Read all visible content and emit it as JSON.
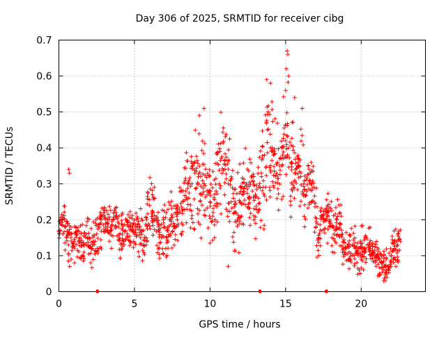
{
  "colors": {
    "series": "#ff0000",
    "grid": "#a0a0a0",
    "axis": "#000000"
  },
  "chart_data": {
    "type": "scatter",
    "title": "Day 306 of 2025, SRMTID for receiver cibg",
    "xlabel": "GPS time / hours",
    "ylabel": "SRMTID / TECUs",
    "xlim": [
      0,
      24.25
    ],
    "ylim": [
      0,
      0.7
    ],
    "grid": true,
    "xticks": [
      0,
      5,
      10,
      15,
      20
    ],
    "xtick_labels": [
      "0",
      "5",
      "10",
      "15",
      "20"
    ],
    "yticks": [
      0,
      0.1,
      0.2,
      0.3,
      0.4,
      0.5,
      0.6,
      0.7
    ],
    "ytick_labels": [
      "0",
      "0.1",
      "0.2",
      "0.3",
      "0.4",
      "0.5",
      "0.6",
      "0.7"
    ],
    "marker": "+",
    "gap_markers_x": [
      2.55,
      13.3,
      17.7
    ],
    "series": [
      {
        "name": "SRMTID",
        "x": [
          0.0,
          0.2,
          0.4,
          0.6,
          0.8,
          1.0,
          1.2,
          1.4,
          1.6,
          1.8,
          2.0,
          2.2,
          2.4,
          2.6,
          2.8,
          3.0,
          3.2,
          3.4,
          3.6,
          3.8,
          4.0,
          4.2,
          4.4,
          4.6,
          4.8,
          5.0,
          5.2,
          5.4,
          5.6,
          5.8,
          6.0,
          6.2,
          6.4,
          6.6,
          6.8,
          7.0,
          7.2,
          7.4,
          7.6,
          7.8,
          8.0,
          8.2,
          8.4,
          8.6,
          8.8,
          9.0,
          9.2,
          9.4,
          9.6,
          9.8,
          10.0,
          10.2,
          10.4,
          10.6,
          10.8,
          11.0,
          11.2,
          11.4,
          11.6,
          11.8,
          12.0,
          12.2,
          12.4,
          12.6,
          12.8,
          13.0,
          13.2,
          13.4,
          13.6,
          13.8,
          14.0,
          14.2,
          14.4,
          14.6,
          14.8,
          15.0,
          15.2,
          15.4,
          15.6,
          15.8,
          16.0,
          16.2,
          16.4,
          16.6,
          16.8,
          17.0,
          17.2,
          17.4,
          17.6,
          17.8,
          18.0,
          18.2,
          18.4,
          18.6,
          18.8,
          19.0,
          19.2,
          19.4,
          19.6,
          19.8,
          20.0,
          20.2,
          20.4,
          20.6,
          20.8,
          21.0,
          21.2,
          21.4,
          21.6,
          21.8,
          22.0,
          22.2,
          22.4,
          22.6
        ],
        "y": [
          0.17,
          0.2,
          0.18,
          0.16,
          0.15,
          0.14,
          0.16,
          0.15,
          0.13,
          0.16,
          0.15,
          0.12,
          0.14,
          0.18,
          0.2,
          0.22,
          0.19,
          0.17,
          0.2,
          0.18,
          0.15,
          0.16,
          0.17,
          0.18,
          0.17,
          0.16,
          0.18,
          0.15,
          0.13,
          0.2,
          0.24,
          0.22,
          0.2,
          0.17,
          0.15,
          0.18,
          0.17,
          0.2,
          0.19,
          0.21,
          0.22,
          0.25,
          0.28,
          0.26,
          0.3,
          0.33,
          0.3,
          0.27,
          0.3,
          0.28,
          0.25,
          0.22,
          0.28,
          0.3,
          0.33,
          0.34,
          0.3,
          0.25,
          0.22,
          0.2,
          0.25,
          0.27,
          0.3,
          0.26,
          0.28,
          0.27,
          0.26,
          0.32,
          0.38,
          0.45,
          0.4,
          0.38,
          0.33,
          0.35,
          0.38,
          0.42,
          0.4,
          0.36,
          0.33,
          0.35,
          0.32,
          0.3,
          0.28,
          0.31,
          0.29,
          0.18,
          0.15,
          0.17,
          0.2,
          0.22,
          0.18,
          0.16,
          0.2,
          0.19,
          0.14,
          0.12,
          0.11,
          0.13,
          0.12,
          0.1,
          0.12,
          0.11,
          0.13,
          0.12,
          0.11,
          0.1,
          0.09,
          0.08,
          0.07,
          0.06,
          0.1,
          0.12,
          0.13,
          0.14
        ],
        "spread": [
          0.04,
          0.06,
          0.06,
          0.08,
          0.06,
          0.05,
          0.05,
          0.06,
          0.06,
          0.06,
          0.07,
          0.05,
          0.06,
          0.07,
          0.06,
          0.06,
          0.05,
          0.05,
          0.05,
          0.05,
          0.05,
          0.05,
          0.05,
          0.05,
          0.04,
          0.05,
          0.06,
          0.06,
          0.05,
          0.07,
          0.07,
          0.07,
          0.07,
          0.07,
          0.06,
          0.08,
          0.07,
          0.06,
          0.06,
          0.06,
          0.08,
          0.08,
          0.1,
          0.11,
          0.13,
          0.14,
          0.13,
          0.13,
          0.12,
          0.1,
          0.1,
          0.1,
          0.11,
          0.12,
          0.12,
          0.11,
          0.12,
          0.12,
          0.1,
          0.09,
          0.1,
          0.1,
          0.11,
          0.09,
          0.08,
          0.09,
          0.1,
          0.13,
          0.15,
          0.12,
          0.13,
          0.12,
          0.12,
          0.12,
          0.13,
          0.14,
          0.15,
          0.13,
          0.12,
          0.1,
          0.1,
          0.1,
          0.08,
          0.08,
          0.08,
          0.08,
          0.07,
          0.07,
          0.06,
          0.06,
          0.06,
          0.06,
          0.06,
          0.05,
          0.05,
          0.05,
          0.05,
          0.05,
          0.05,
          0.05,
          0.05,
          0.05,
          0.05,
          0.05,
          0.04,
          0.04,
          0.04,
          0.04,
          0.04,
          0.04,
          0.04,
          0.05,
          0.05,
          0.05
        ],
        "extremes": [
          {
            "x": 0.65,
            "y": 0.34
          },
          {
            "x": 0.7,
            "y": 0.33
          },
          {
            "x": 9.6,
            "y": 0.51
          },
          {
            "x": 9.3,
            "y": 0.49
          },
          {
            "x": 13.75,
            "y": 0.59
          },
          {
            "x": 14.0,
            "y": 0.58
          },
          {
            "x": 15.1,
            "y": 0.67
          },
          {
            "x": 15.15,
            "y": 0.66
          },
          {
            "x": 15.05,
            "y": 0.62
          },
          {
            "x": 15.2,
            "y": 0.6
          },
          {
            "x": 15.0,
            "y": 0.56
          },
          {
            "x": 15.6,
            "y": 0.54
          },
          {
            "x": 16.1,
            "y": 0.51
          },
          {
            "x": 11.2,
            "y": 0.07
          },
          {
            "x": 21.7,
            "y": 0.04
          },
          {
            "x": 21.2,
            "y": 0.05
          }
        ]
      }
    ]
  }
}
